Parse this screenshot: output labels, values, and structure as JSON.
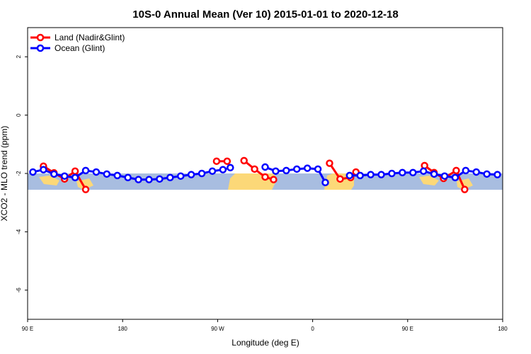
{
  "chart_data": {
    "type": "line",
    "title": "10S-0 Annual Mean (Ver 10)   2015-01-01 to 2020-12-18",
    "xlabel": "Longitude (deg E)",
    "ylabel": "XCO2 - MLO trend (ppm)",
    "xlim": [
      90,
      540
    ],
    "ylim": [
      -7,
      3
    ],
    "xticks": [
      {
        "value": 90,
        "label": "90 E"
      },
      180,
      {
        "value": 270,
        "label": "90 W"
      },
      {
        "value": 360,
        "label": "0"
      },
      {
        "value": 450,
        "label": "90 E"
      },
      {
        "value": 540,
        "label": "180"
      }
    ],
    "yticks": [
      -6,
      -4,
      -2,
      0,
      2
    ],
    "legend": "top-left",
    "series": [
      {
        "name": "Land (Nadir&Glint)",
        "color": "#ff0000",
        "x": [
          105,
          115,
          125,
          135,
          145,
          null,
          269,
          279,
          null,
          295,
          305,
          315,
          323,
          null,
          376,
          386,
          396,
          401,
          null,
          466,
          475,
          484,
          496,
          504
        ],
        "values": [
          -1.75,
          -1.98,
          -2.19,
          -1.92,
          -2.55,
          null,
          -1.58,
          -1.58,
          null,
          -1.56,
          -1.85,
          -2.12,
          -2.21,
          null,
          -1.65,
          -2.19,
          -2.14,
          -1.95,
          null,
          -1.73,
          -1.97,
          -2.17,
          -1.9,
          -2.55
        ]
      },
      {
        "name": "Ocean (Glint)",
        "color": "#0000ff",
        "x": [
          95,
          105,
          115,
          125,
          135,
          145,
          155,
          165,
          175,
          185,
          195,
          205,
          215,
          225,
          235,
          245,
          255,
          265,
          275,
          282,
          null,
          315,
          325,
          335,
          345,
          355,
          365,
          372,
          null,
          395,
          405,
          415,
          425,
          435,
          445,
          455,
          465,
          475,
          485,
          495,
          505,
          515,
          525,
          535
        ],
        "values": [
          -1.95,
          -1.87,
          -2.02,
          -2.09,
          -2.14,
          -1.9,
          -1.95,
          -2.02,
          -2.07,
          -2.14,
          -2.21,
          -2.21,
          -2.19,
          -2.14,
          -2.09,
          -2.04,
          -2.0,
          -1.92,
          -1.87,
          -1.8,
          null,
          -1.78,
          -1.92,
          -1.9,
          -1.85,
          -1.82,
          -1.85,
          -2.31,
          null,
          -2.07,
          -2.07,
          -2.04,
          -2.04,
          -2.0,
          -1.97,
          -1.97,
          -1.92,
          -2.02,
          -2.09,
          -2.14,
          -1.9,
          -1.95,
          -2.02,
          -2.04
        ]
      }
    ]
  }
}
